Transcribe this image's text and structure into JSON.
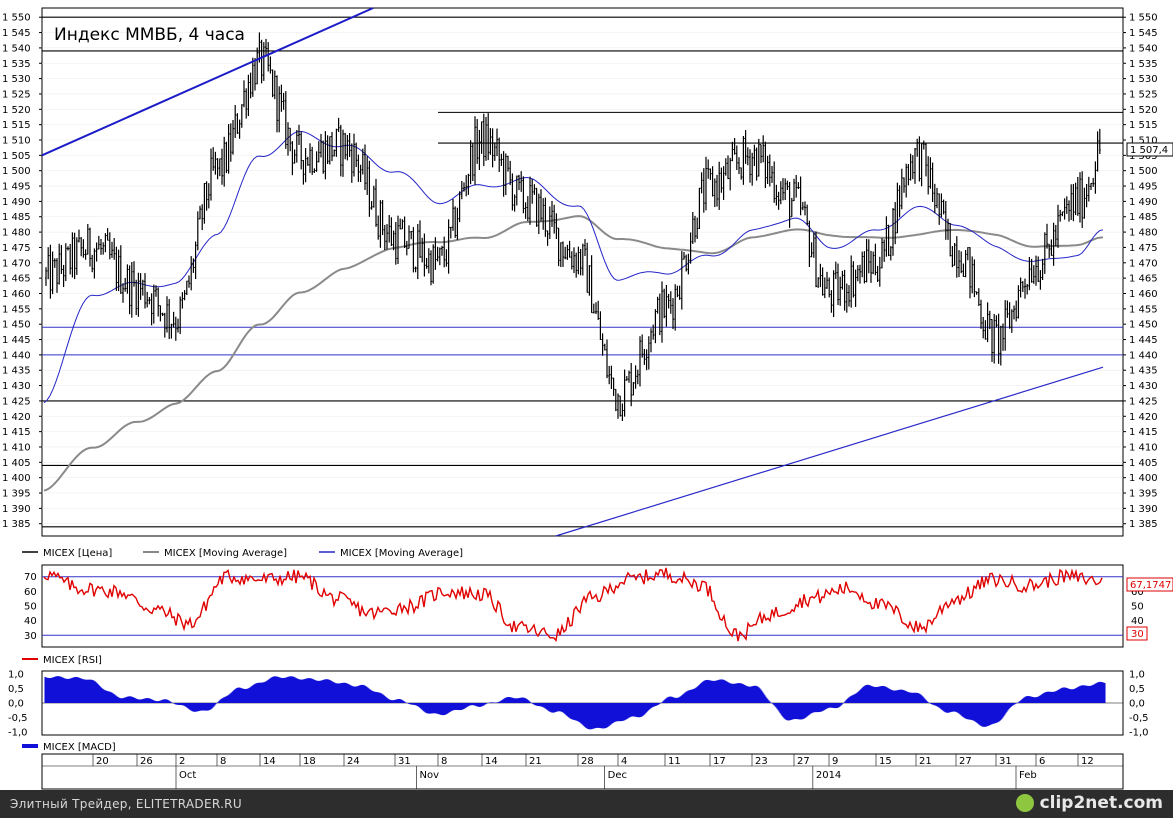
{
  "footer": {
    "source": "Элитный Трейдер, ELITETRADER.RU",
    "brand": "clip2net.com"
  },
  "colors": {
    "price": "#000000",
    "ma_slow": "#8a8a8a",
    "ma_fast": "#2525c8",
    "trend": "#1c1cc8",
    "support_blue": "#3232c8",
    "rsi": "#e00000",
    "macd": "#1010d8"
  },
  "chart_data": [
    {
      "type": "line",
      "title": "Индекс ММВБ, 4 часа",
      "legend": [
        "MICEX [Цена]",
        "MICEX [Moving Average]",
        "MICEX [Moving Average]"
      ],
      "last_value_label": "1 507,4",
      "ylim": [
        1381,
        1553
      ],
      "yticks": [
        1385,
        1390,
        1395,
        1400,
        1405,
        1410,
        1415,
        1420,
        1425,
        1430,
        1435,
        1440,
        1445,
        1450,
        1455,
        1460,
        1465,
        1470,
        1475,
        1480,
        1485,
        1490,
        1495,
        1500,
        1505,
        1510,
        1515,
        1520,
        1525,
        1530,
        1535,
        1540,
        1545,
        1550
      ],
      "ytick_labels": [
        "1 385",
        "1 390",
        "1 395",
        "1 400",
        "1 405",
        "1 410",
        "1 415",
        "1 420",
        "1 425",
        "1 430",
        "1 435",
        "1 440",
        "1 445",
        "1 450",
        "1 455",
        "1 460",
        "1 465",
        "1 470",
        "1 475",
        "1 480",
        "1 485",
        "1 490",
        "1 495",
        "1 500",
        "1 505",
        "1 510",
        "1 515",
        "1 520",
        "1 525",
        "1 530",
        "1 535",
        "1 540",
        "1 545",
        "1 550"
      ],
      "right_ytick_labels": [
        "1 385",
        "1 390",
        "1 395",
        "1 400",
        "1 405",
        "1 410",
        "1 415",
        "1 420",
        "1 425",
        "1 430",
        "1 435",
        "1 440",
        "1 445",
        "1 450",
        "1 455",
        "1 460",
        "1 465",
        "1 470",
        "1 475",
        "1 480",
        "1 485",
        "1 490",
        "1 495",
        "1 500",
        "1 505",
        "1 510",
        "1 515",
        "1 520",
        "1 525",
        "1 530",
        "1 535",
        "1 540",
        "1 545",
        "1 550"
      ],
      "x_dates": [
        "2013-09-16",
        "2013-09-20",
        "2013-09-26",
        "2013-10-02",
        "2013-10-08",
        "2013-10-14",
        "2013-10-18",
        "2013-10-24",
        "2013-10-31",
        "2013-11-08",
        "2013-11-14",
        "2013-11-21",
        "2013-11-28",
        "2013-12-04",
        "2013-12-11",
        "2013-12-17",
        "2013-12-23",
        "2013-12-27",
        "2014-01-09",
        "2014-01-15",
        "2014-01-21",
        "2014-01-27",
        "2014-01-31",
        "2014-02-06",
        "2014-02-12",
        "2014-02-16"
      ],
      "close_anchors": [
        1465,
        1475,
        1462,
        1452,
        1500,
        1535,
        1505,
        1508,
        1478,
        1470,
        1510,
        1490,
        1472,
        1427,
        1455,
        1495,
        1505,
        1490,
        1460,
        1470,
        1505,
        1475,
        1445,
        1470,
        1490,
        1507.4
      ],
      "ma_fast_anchors": [
        1425,
        1460,
        1463,
        1463,
        1480,
        1505,
        1512,
        1508,
        1500,
        1490,
        1495,
        1497,
        1488,
        1465,
        1467,
        1472,
        1480,
        1485,
        1475,
        1480,
        1488,
        1483,
        1475,
        1470,
        1473,
        1480
      ],
      "ma_slow_anchors": [
        1396,
        1410,
        1418,
        1424,
        1435,
        1450,
        1460,
        1468,
        1475,
        1477,
        1478,
        1483,
        1485,
        1478,
        1475,
        1473,
        1478,
        1481,
        1479,
        1478,
        1479,
        1481,
        1479,
        1475,
        1476,
        1478
      ],
      "horizontal_levels": [
        {
          "value": 1550,
          "color": "#000000",
          "from": "2013-09-16"
        },
        {
          "value": 1539,
          "color": "#000000",
          "from": "2013-09-16"
        },
        {
          "value": 1519,
          "color": "#000000",
          "from": "2013-11-08"
        },
        {
          "value": 1509,
          "color": "#000000",
          "from": "2013-11-08"
        },
        {
          "value": 1449,
          "color": "#3232c8",
          "from": "2013-09-16"
        },
        {
          "value": 1440,
          "color": "#3232c8",
          "from": "2013-09-16"
        },
        {
          "value": 1425,
          "color": "#000000",
          "from": "2013-09-16"
        },
        {
          "value": 1404,
          "color": "#000000",
          "from": "2013-09-16"
        },
        {
          "value": 1384,
          "color": "#000000",
          "from": "2013-09-16"
        }
      ],
      "trendlines": [
        {
          "from": [
            "2013-09-16",
            1505
          ],
          "to": [
            "2013-10-28",
            1553
          ],
          "color": "#1c1cc8"
        },
        {
          "from": [
            "2013-11-25",
            1381
          ],
          "to": [
            "2014-02-16",
            1436
          ],
          "color": "#2a2ac8"
        }
      ]
    },
    {
      "type": "line",
      "legend": [
        "MICEX [RSI]"
      ],
      "last_value_label": "67,1747",
      "oversold_label": "30",
      "ylim": [
        22,
        78
      ],
      "yticks": [
        30,
        40,
        50,
        60,
        70
      ],
      "ytick_labels": [
        "30",
        "40",
        "50",
        "60",
        "70"
      ],
      "levels": [
        70,
        30
      ],
      "rsi_anchors": [
        72,
        62,
        60,
        48,
        38,
        70,
        68,
        70,
        55,
        45,
        50,
        60,
        58,
        35,
        30,
        55,
        68,
        72,
        65,
        30,
        45,
        55,
        62,
        50,
        35,
        55,
        68,
        64,
        70,
        67
      ]
    },
    {
      "type": "bar",
      "legend": [
        "MICEX [MACD]"
      ],
      "ylim": [
        -1.1,
        1.1
      ],
      "yticks": [
        -1.0,
        -0.5,
        0.0,
        0.5,
        1.0
      ],
      "ytick_labels": [
        "-1,0",
        "-0,5",
        "0,0",
        "0,5",
        "1,0"
      ],
      "right_ytick_labels": [
        "-1,0",
        "-0,5",
        "0,0",
        "0,5",
        "1,0"
      ],
      "left_extra_labels": [
        "0,5"
      ],
      "macd_anchors": [
        0.9,
        0.85,
        0.2,
        0.1,
        -0.3,
        0.5,
        0.9,
        0.8,
        0.6,
        0.1,
        -0.4,
        -0.1,
        0.2,
        -0.3,
        -0.9,
        -0.5,
        0.2,
        0.8,
        0.6,
        -0.6,
        -0.2,
        0.6,
        0.4,
        -0.3,
        -0.8,
        0.2,
        0.5,
        0.7
      ]
    },
    {
      "type": "table",
      "date_axis": {
        "day_labels": [
          {
            "date": "2013-09-20",
            "label": "20"
          },
          {
            "date": "2013-09-26",
            "label": "26"
          },
          {
            "date": "2013-10-02",
            "label": "2"
          },
          {
            "date": "2013-10-08",
            "label": "8"
          },
          {
            "date": "2013-10-14",
            "label": "14"
          },
          {
            "date": "2013-10-18",
            "label": "18"
          },
          {
            "date": "2013-10-24",
            "label": "24"
          },
          {
            "date": "2013-10-31",
            "label": "31"
          },
          {
            "date": "2013-11-08",
            "label": "8"
          },
          {
            "date": "2013-11-14",
            "label": "14"
          },
          {
            "date": "2013-11-21",
            "label": "21"
          },
          {
            "date": "2013-11-28",
            "label": "28"
          },
          {
            "date": "2013-12-04",
            "label": "4"
          },
          {
            "date": "2013-12-11",
            "label": "11"
          },
          {
            "date": "2013-12-17",
            "label": "17"
          },
          {
            "date": "2013-12-23",
            "label": "23"
          },
          {
            "date": "2013-12-27",
            "label": "27"
          },
          {
            "date": "2014-01-09",
            "label": "9"
          },
          {
            "date": "2014-01-15",
            "label": "15"
          },
          {
            "date": "2014-01-21",
            "label": "21"
          },
          {
            "date": "2014-01-27",
            "label": "27"
          },
          {
            "date": "2014-01-31",
            "label": "31"
          },
          {
            "date": "2014-02-06",
            "label": "6"
          },
          {
            "date": "2014-02-12",
            "label": "12"
          }
        ],
        "month_labels": [
          {
            "date": "2013-10-02",
            "label": "Oct"
          },
          {
            "date": "2013-11-04",
            "label": "Nov"
          },
          {
            "date": "2013-12-02",
            "label": "Dec"
          },
          {
            "date": "2014-01-03",
            "label": "2014"
          },
          {
            "date": "2014-02-03",
            "label": "Feb"
          }
        ]
      }
    }
  ]
}
